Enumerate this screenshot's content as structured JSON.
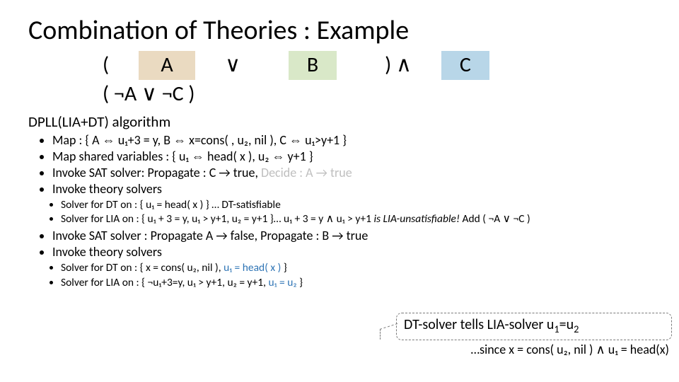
{
  "title": "Combination of Theories : Example",
  "formula": {
    "row1": {
      "lp": "(",
      "A": "A",
      "or": "∨",
      "B": "B",
      "rp_and": ") ∧",
      "C": "C"
    },
    "row2": "( ¬A ∨ ¬C )"
  },
  "algorithm_label": "DPLL(LIA+DT) algorithm",
  "steps": {
    "s1_pre": "Map :  { A ⇔",
    "s1_m1": "u₁+3 = y,  B ⇔ x=cons(",
    "s1_m2": ", u₂, nil ),  C ⇔",
    "s1_m3": "u₁>y+1 }",
    "s2": "Map shared variables : { u₁ ⇔ head( x ), u₂ ⇔ y+1 }",
    "s3_pre": "Invoke SAT solver: Propagate : C → true, ",
    "s3_grey": "Decide : A → true",
    "s4": "Invoke theory solvers",
    "sub1a": "Solver for DT on : { u₁ = head( x ) } … DT-satisfiable",
    "sub1b_pre": "Solver for LIA on : { u₁ + 3 = y, u₁ > y+1, u₂ = y+1 }… u₁ + 3 = y ∧ u₁ > y+1 ",
    "sub1b_em": "is LIA-unsatisfiable!",
    "sub1b_post": "  Add ( ¬A ∨ ¬C )",
    "s5": "Invoke SAT solver : Propagate A → false, Propagate : B → true",
    "s6": "Invoke theory solvers",
    "sub2a_pre": "Solver for DT on : { x = cons( u₂, nil ), ",
    "sub2a_blue": "u₁ = head( x )",
    "sub2a_post": " }",
    "sub2b_pre": "Solver for LIA on : { ¬u₁+3=y, u₁ > y+1, u₂ = y+1, ",
    "sub2b_blue": "u₁ = u₂",
    "sub2b_post": " }"
  },
  "callout": {
    "main_pre": "DT-solver tells LIA-solver ",
    "main_eq": "u₁=u₂",
    "sub": "…since x = cons( u₂, nil ) ∧ u₁ = head(x)"
  }
}
